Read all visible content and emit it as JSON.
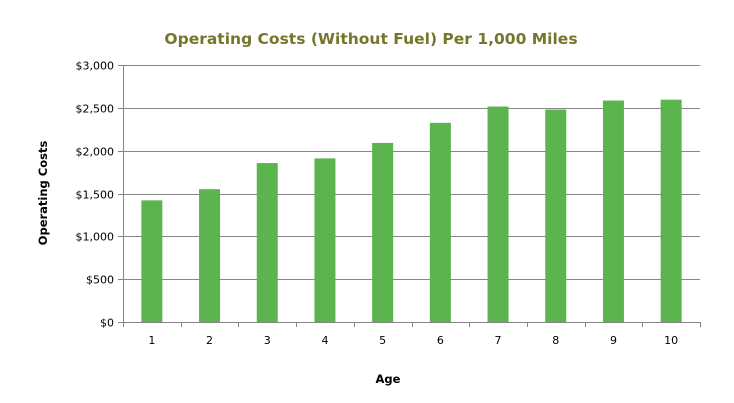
{
  "chart_data": {
    "type": "bar",
    "title": "Operating Costs (Without Fuel) Per 1,000 Miles",
    "xlabel": "Age",
    "ylabel": "Operating Costs",
    "categories": [
      "1",
      "2",
      "3",
      "4",
      "5",
      "6",
      "7",
      "8",
      "9",
      "10"
    ],
    "values": [
      1420,
      1550,
      1855,
      1910,
      2090,
      2325,
      2515,
      2480,
      2585,
      2595
    ],
    "ylim": [
      0,
      3000
    ],
    "yticks": [
      0,
      500,
      1000,
      1500,
      2000,
      2500,
      3000
    ],
    "ytick_labels": [
      "$0",
      "$500",
      "$1,000",
      "$1,500",
      "$2,000",
      "$2,500",
      "$3,000"
    ],
    "grid": true,
    "legend": "none",
    "bar_color": "#5bb44d",
    "grid_color": "#868686"
  }
}
